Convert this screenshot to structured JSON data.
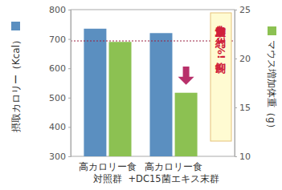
{
  "chart_data": {
    "type": "bar",
    "categories": [
      "高カロリー食\n対照群",
      "高カロリー食\n+DC15菌エキス末群"
    ],
    "series": [
      {
        "color": "#5b8fc0",
        "values": [
          735,
          720
        ]
      },
      {
        "color": "#8cc152",
        "values": [
          21.7,
          16.5
        ],
        "axis": "y2"
      }
    ],
    "ylabel": "摂取カロリー（Kcal）",
    "y2label": "マウス増加体重（g）",
    "ylim": [
      300,
      800
    ],
    "yticks": [
      300,
      400,
      500,
      600,
      700,
      800
    ],
    "y2lim": [
      10,
      25
    ],
    "y2ticks": [
      10,
      15,
      20,
      25
    ],
    "reference_line": 21.8,
    "annotation": "体重増加を約23%抑制!"
  }
}
